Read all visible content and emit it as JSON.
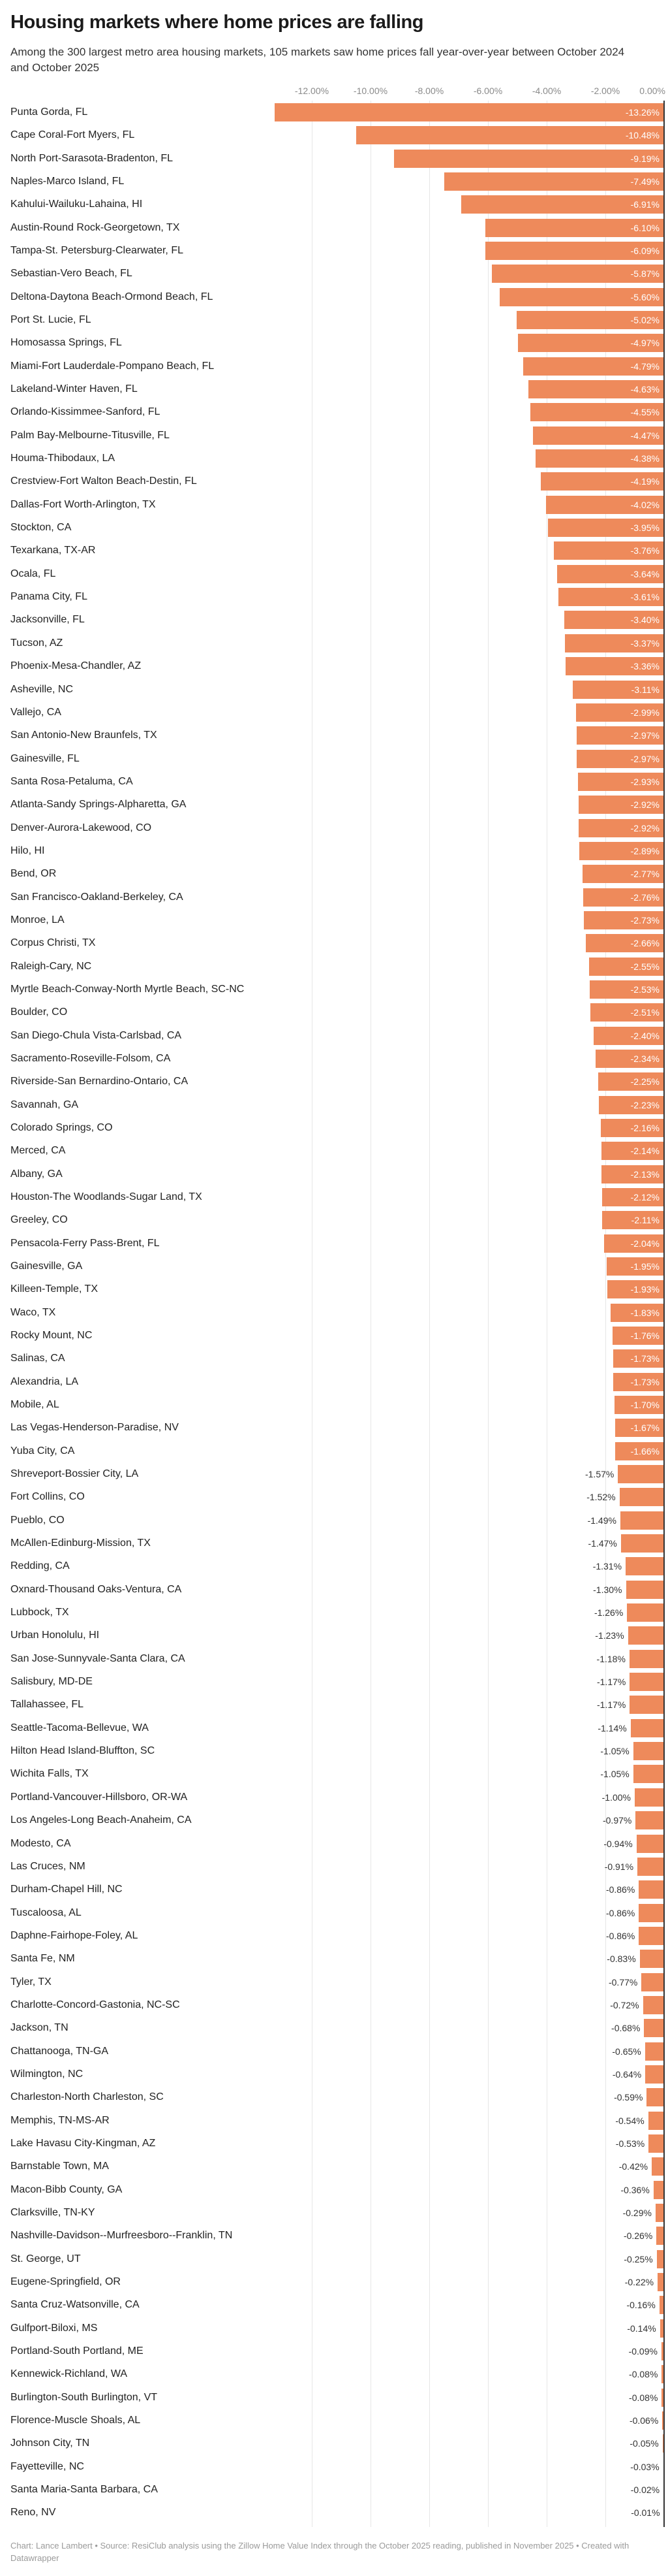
{
  "title": "Housing markets where home prices are falling",
  "subtitle": "Among the 300 largest metro area housing markets, 105 markets saw home prices fall year-over-year between October 2024 and October 2025",
  "footer": "Chart: Lance Lambert • Source: ResiClub analysis using the Zillow Home Value Index through the October 2025 reading, published in November 2025 • Created with Datawrapper",
  "chart_data": {
    "type": "bar",
    "orientation": "horizontal",
    "title": "Housing markets where home prices are falling",
    "xlabel": "",
    "ylabel": "",
    "xlim": [
      -13.26,
      0
    ],
    "grid": true,
    "bar_color": "#ee8a5b",
    "x_ticks": [
      "-12.00%",
      "-10.00%",
      "-8.00%",
      "-6.00%",
      "-4.00%",
      "-2.00%",
      "0.00%"
    ],
    "x_tick_values": [
      -12,
      -10,
      -8,
      -6,
      -4,
      -2,
      0
    ],
    "categories": [
      "Punta Gorda, FL",
      "Cape Coral-Fort Myers, FL",
      "North Port-Sarasota-Bradenton, FL",
      "Naples-Marco Island, FL",
      "Kahului-Wailuku-Lahaina, HI",
      "Austin-Round Rock-Georgetown, TX",
      "Tampa-St. Petersburg-Clearwater, FL",
      "Sebastian-Vero Beach, FL",
      "Deltona-Daytona Beach-Ormond Beach, FL",
      "Port St. Lucie, FL",
      "Homosassa Springs, FL",
      "Miami-Fort Lauderdale-Pompano Beach, FL",
      "Lakeland-Winter Haven, FL",
      "Orlando-Kissimmee-Sanford, FL",
      "Palm Bay-Melbourne-Titusville, FL",
      "Houma-Thibodaux, LA",
      "Crestview-Fort Walton Beach-Destin, FL",
      "Dallas-Fort Worth-Arlington, TX",
      "Stockton, CA",
      "Texarkana, TX-AR",
      "Ocala, FL",
      "Panama City, FL",
      "Jacksonville, FL",
      "Tucson, AZ",
      "Phoenix-Mesa-Chandler, AZ",
      "Asheville, NC",
      "Vallejo, CA",
      "San Antonio-New Braunfels, TX",
      "Gainesville, FL",
      "Santa Rosa-Petaluma, CA",
      "Atlanta-Sandy Springs-Alpharetta, GA",
      "Denver-Aurora-Lakewood, CO",
      "Hilo, HI",
      "Bend, OR",
      "San Francisco-Oakland-Berkeley, CA",
      "Monroe, LA",
      "Corpus Christi, TX",
      "Raleigh-Cary, NC",
      "Myrtle Beach-Conway-North Myrtle Beach, SC-NC",
      "Boulder, CO",
      "San Diego-Chula Vista-Carlsbad, CA",
      "Sacramento-Roseville-Folsom, CA",
      "Riverside-San Bernardino-Ontario, CA",
      "Savannah, GA",
      "Colorado Springs, CO",
      "Merced, CA",
      "Albany, GA",
      "Houston-The Woodlands-Sugar Land, TX",
      "Greeley, CO",
      "Pensacola-Ferry Pass-Brent, FL",
      "Gainesville, GA",
      "Killeen-Temple, TX",
      "Waco, TX",
      "Rocky Mount, NC",
      "Salinas, CA",
      "Alexandria, LA",
      "Mobile, AL",
      "Las Vegas-Henderson-Paradise, NV",
      "Yuba City, CA",
      "Shreveport-Bossier City, LA",
      "Fort Collins, CO",
      "Pueblo, CO",
      "McAllen-Edinburg-Mission, TX",
      "Redding, CA",
      "Oxnard-Thousand Oaks-Ventura, CA",
      "Lubbock, TX",
      "Urban Honolulu, HI",
      "San Jose-Sunnyvale-Santa Clara, CA",
      "Salisbury, MD-DE",
      "Tallahassee, FL",
      "Seattle-Tacoma-Bellevue, WA",
      "Hilton Head Island-Bluffton, SC",
      "Wichita Falls, TX",
      "Portland-Vancouver-Hillsboro, OR-WA",
      "Los Angeles-Long Beach-Anaheim, CA",
      "Modesto, CA",
      "Las Cruces, NM",
      "Durham-Chapel Hill, NC",
      "Tuscaloosa, AL",
      "Daphne-Fairhope-Foley, AL",
      "Santa Fe, NM",
      "Tyler, TX",
      "Charlotte-Concord-Gastonia, NC-SC",
      "Jackson, TN",
      "Chattanooga, TN-GA",
      "Wilmington, NC",
      "Charleston-North Charleston, SC",
      "Memphis, TN-MS-AR",
      "Lake Havasu City-Kingman, AZ",
      "Barnstable Town, MA",
      "Macon-Bibb County, GA",
      "Clarksville, TN-KY",
      "Nashville-Davidson--Murfreesboro--Franklin, TN",
      "St. George, UT",
      "Eugene-Springfield, OR",
      "Santa Cruz-Watsonville, CA",
      "Gulfport-Biloxi, MS",
      "Portland-South Portland, ME",
      "Kennewick-Richland, WA",
      "Burlington-South Burlington, VT",
      "Florence-Muscle Shoals, AL",
      "Johnson City, TN",
      "Fayetteville, NC",
      "Santa Maria-Santa Barbara, CA",
      "Reno, NV"
    ],
    "values": [
      -13.26,
      -10.48,
      -9.19,
      -7.49,
      -6.91,
      -6.1,
      -6.09,
      -5.87,
      -5.6,
      -5.02,
      -4.97,
      -4.79,
      -4.63,
      -4.55,
      -4.47,
      -4.38,
      -4.19,
      -4.02,
      -3.95,
      -3.76,
      -3.64,
      -3.61,
      -3.4,
      -3.37,
      -3.36,
      -3.11,
      -2.99,
      -2.97,
      -2.97,
      -2.93,
      -2.92,
      -2.92,
      -2.89,
      -2.77,
      -2.76,
      -2.73,
      -2.66,
      -2.55,
      -2.53,
      -2.51,
      -2.4,
      -2.34,
      -2.25,
      -2.23,
      -2.16,
      -2.14,
      -2.13,
      -2.12,
      -2.11,
      -2.04,
      -1.95,
      -1.93,
      -1.83,
      -1.76,
      -1.73,
      -1.73,
      -1.7,
      -1.67,
      -1.66,
      -1.57,
      -1.52,
      -1.49,
      -1.47,
      -1.31,
      -1.3,
      -1.26,
      -1.23,
      -1.18,
      -1.17,
      -1.17,
      -1.14,
      -1.05,
      -1.05,
      -1.0,
      -0.97,
      -0.94,
      -0.91,
      -0.86,
      -0.86,
      -0.86,
      -0.83,
      -0.77,
      -0.72,
      -0.68,
      -0.65,
      -0.64,
      -0.59,
      -0.54,
      -0.53,
      -0.42,
      -0.36,
      -0.29,
      -0.26,
      -0.25,
      -0.22,
      -0.16,
      -0.14,
      -0.09,
      -0.08,
      -0.08,
      -0.06,
      -0.05,
      -0.03,
      -0.02,
      -0.01
    ]
  }
}
